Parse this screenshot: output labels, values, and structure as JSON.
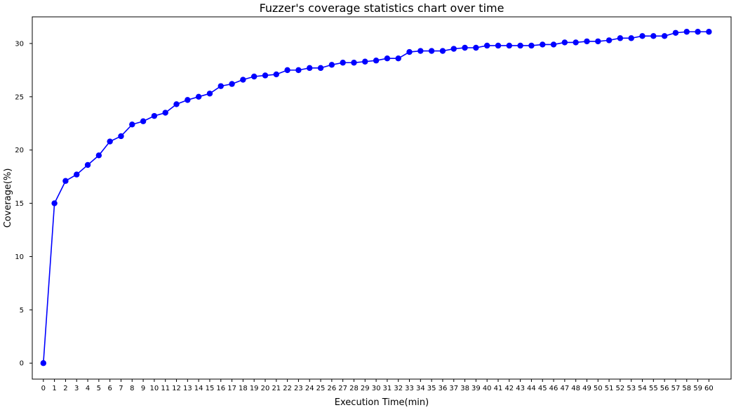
{
  "chart_data": {
    "type": "line",
    "title": "Fuzzer's coverage statistics chart over time",
    "xlabel": "Execution Time(min)",
    "ylabel": "Coverage(%)",
    "xlim": [
      -1.0,
      62.0
    ],
    "ylim": [
      -1.5,
      32.5
    ],
    "x_ticks": [
      0,
      1,
      2,
      3,
      4,
      5,
      6,
      7,
      8,
      9,
      10,
      11,
      12,
      13,
      14,
      15,
      16,
      17,
      18,
      19,
      20,
      21,
      22,
      23,
      24,
      25,
      26,
      27,
      28,
      29,
      30,
      31,
      32,
      33,
      34,
      35,
      36,
      37,
      38,
      39,
      40,
      41,
      42,
      43,
      44,
      45,
      46,
      47,
      48,
      49,
      50,
      51,
      52,
      53,
      54,
      55,
      56,
      57,
      58,
      59,
      60
    ],
    "y_ticks": [
      0,
      5,
      10,
      15,
      20,
      25,
      30
    ],
    "grid": false,
    "legend": null,
    "series": [
      {
        "color": "#0000ff",
        "marker": "circle",
        "x": [
          0,
          1,
          2,
          3,
          4,
          5,
          6,
          7,
          8,
          9,
          10,
          11,
          12,
          13,
          14,
          15,
          16,
          17,
          18,
          19,
          20,
          21,
          22,
          23,
          24,
          25,
          26,
          27,
          28,
          29,
          30,
          31,
          32,
          33,
          34,
          35,
          36,
          37,
          38,
          39,
          40,
          41,
          42,
          43,
          44,
          45,
          46,
          47,
          48,
          49,
          50,
          51,
          52,
          53,
          54,
          55,
          56,
          57,
          58,
          59,
          60
        ],
        "y": [
          0.0,
          15.0,
          17.1,
          17.7,
          18.6,
          19.5,
          20.8,
          21.3,
          22.4,
          22.7,
          23.2,
          23.5,
          24.3,
          24.7,
          25.0,
          25.3,
          26.0,
          26.2,
          26.6,
          26.9,
          27.0,
          27.1,
          27.5,
          27.5,
          27.7,
          27.7,
          28.0,
          28.2,
          28.2,
          28.3,
          28.4,
          28.6,
          28.6,
          29.2,
          29.3,
          29.3,
          29.3,
          29.5,
          29.6,
          29.6,
          29.8,
          29.8,
          29.8,
          29.8,
          29.8,
          29.9,
          29.9,
          30.1,
          30.1,
          30.2,
          30.2,
          30.3,
          30.5,
          30.5,
          30.7,
          30.7,
          30.7,
          31.0,
          31.1,
          31.1,
          31.1
        ]
      }
    ]
  }
}
